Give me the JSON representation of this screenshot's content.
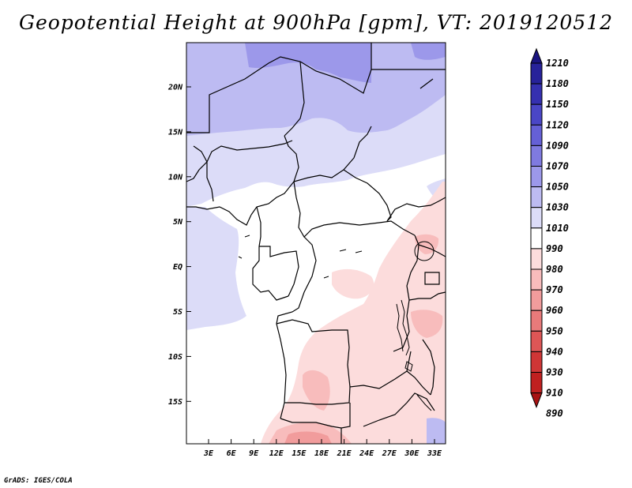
{
  "title": "Geopotential Height at 900hPa [gpm], VT: 2019120512",
  "credit": "GrADS: IGES/COLA",
  "lat_ticks": [
    "20N",
    "15N",
    "10N",
    "5N",
    "EQ",
    "5S",
    "10S",
    "15S"
  ],
  "lon_ticks": [
    "3E",
    "6E",
    "9E",
    "12E",
    "15E",
    "18E",
    "21E",
    "24E",
    "27E",
    "30E",
    "33E"
  ],
  "colorbar": {
    "labels": [
      "1210",
      "1180",
      "1150",
      "1120",
      "1090",
      "1070",
      "1050",
      "1030",
      "1010",
      "990",
      "980",
      "970",
      "960",
      "950",
      "940",
      "930",
      "910",
      "890"
    ],
    "colors": [
      "#1a1480",
      "#27229a",
      "#3530b0",
      "#4a46c6",
      "#6560d6",
      "#7f7ae0",
      "#9c98ea",
      "#bdbbf2",
      "#dcdcf8",
      "#ffffff",
      "#fcdcdc",
      "#f8bcbc",
      "#f19c9c",
      "#e87a7a",
      "#dd5656",
      "#cf3636",
      "#c02020",
      "#a81212"
    ]
  }
}
